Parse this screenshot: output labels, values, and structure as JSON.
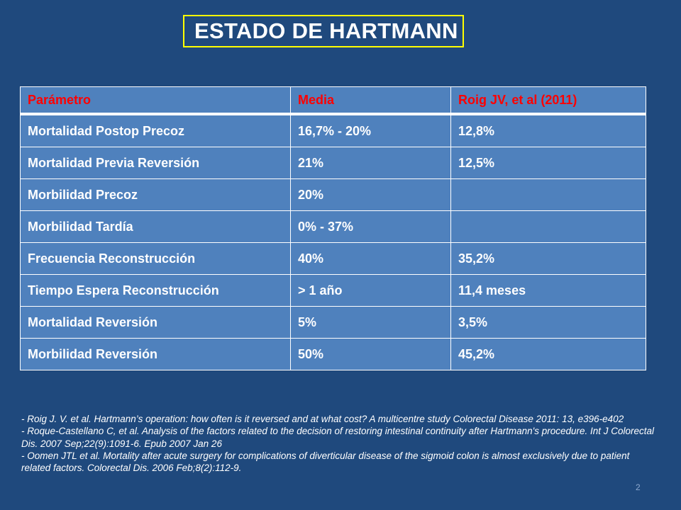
{
  "title": "ESTADO DE HARTMANN",
  "table": {
    "headers": [
      "Parámetro",
      "Media",
      "Roig JV, et al (2011)"
    ],
    "rows": [
      [
        "Mortalidad Postop Precoz",
        "16,7% - 20%",
        "12,8%"
      ],
      [
        "Mortalidad Previa Reversión",
        "21%",
        "12,5%"
      ],
      [
        "Morbilidad Precoz",
        "20%",
        ""
      ],
      [
        "Morbilidad Tardía",
        "0% - 37%",
        ""
      ],
      [
        "Frecuencia Reconstrucción",
        "40%",
        "35,2%"
      ],
      [
        "Tiempo Espera Reconstrucción",
        "> 1 año",
        "11,4 meses"
      ],
      [
        "Mortalidad Reversión",
        "5%",
        "3,5%"
      ],
      [
        "Morbilidad Reversión",
        "50%",
        "45,2%"
      ]
    ]
  },
  "references": [
    "- Roig J. V. et al. Hartmann’s operation: how often is it reversed and at what cost? A multicentre study Colorectal Disease 2011: 13, e396-e402",
    "- Roque-Castellano C, et al. Analysis of the factors related to the decision of restoring intestinal continuity after Hartmann's procedure. Int J Colorectal Dis. 2007 Sep;22(9):1091-6. Epub 2007 Jan 26",
    "- Oomen JTL et al. Mortality after acute surgery for complications of diverticular disease of the sigmoid colon is almost exclusively due to patient related factors. Colorectal Dis. 2006 Feb;8(2):112-9."
  ],
  "page_number": "2",
  "colors": {
    "background": "#1F497D",
    "table_cell": "#4F81BD",
    "header_text": "#FF0000",
    "title_border": "#FFFF00",
    "text": "#FFFFFF"
  }
}
